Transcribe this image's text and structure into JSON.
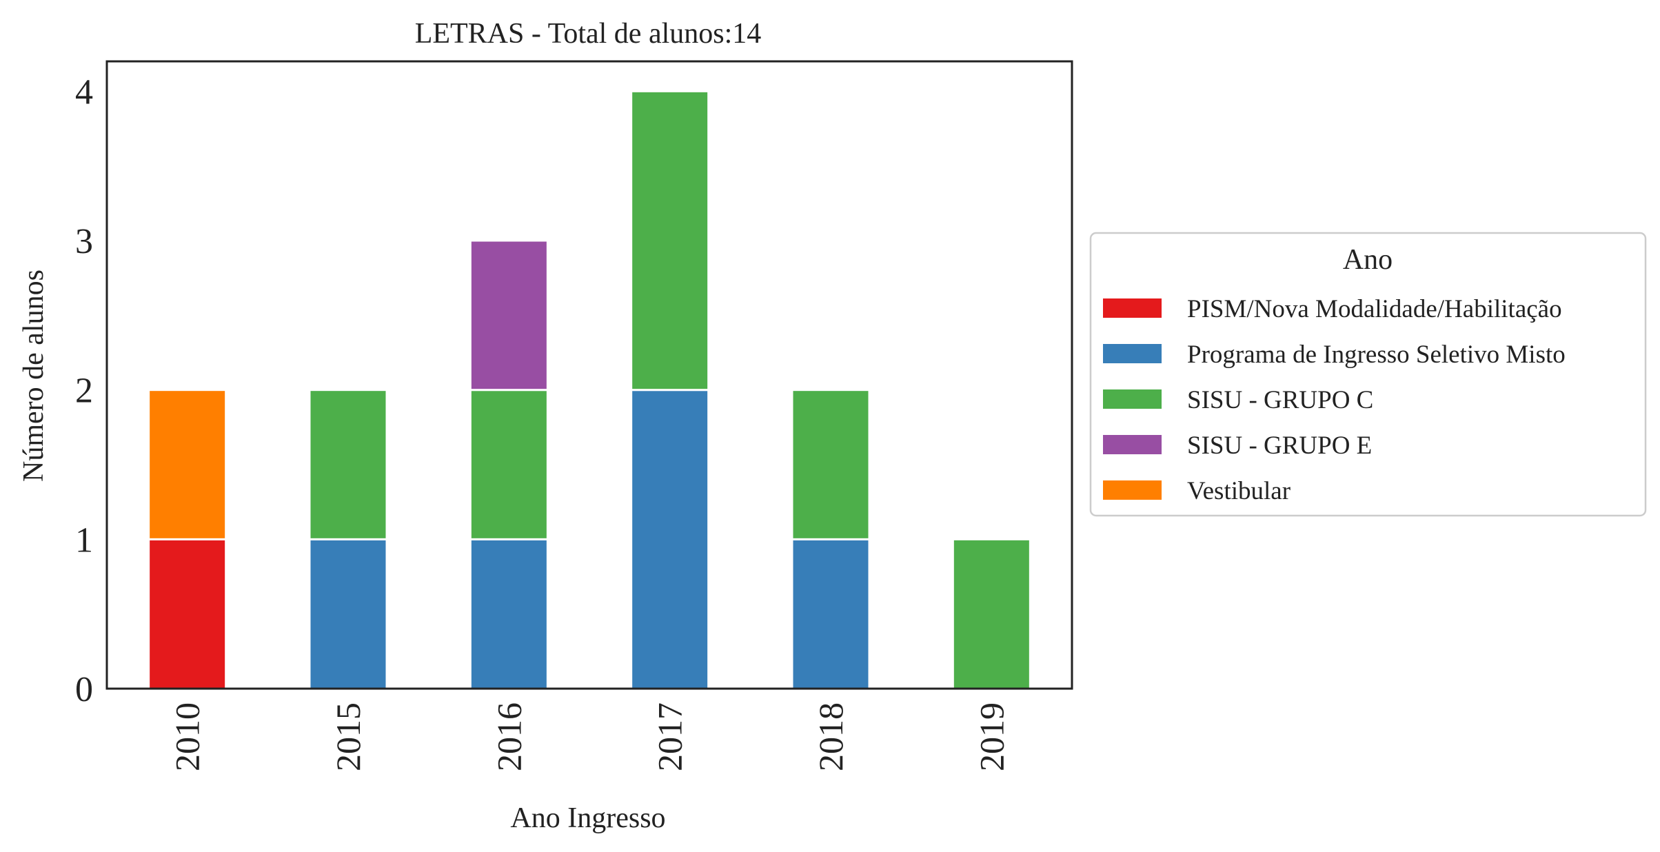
{
  "chart_data": {
    "type": "bar",
    "stacked": true,
    "title": "LETRAS - Total de alunos:14",
    "xlabel": "Ano Ingresso",
    "ylabel": "Número de alunos",
    "categories": [
      "2010",
      "2015",
      "2016",
      "2017",
      "2018",
      "2019"
    ],
    "ylim": [
      0,
      4.2
    ],
    "yticks": [
      "0",
      "1",
      "2",
      "3",
      "4"
    ],
    "legend_title": "Ano",
    "legend_position": "right",
    "grid": false,
    "series": [
      {
        "name": "PISM/Nova Modalidade/Habilitação",
        "color": "#e41a1c",
        "values": [
          1,
          0,
          0,
          0,
          0,
          0
        ]
      },
      {
        "name": "Programa de Ingresso Seletivo Misto",
        "color": "#377eb8",
        "values": [
          0,
          1,
          1,
          2,
          1,
          0
        ]
      },
      {
        "name": "SISU - GRUPO C",
        "color": "#4daf4a",
        "values": [
          0,
          1,
          1,
          2,
          1,
          1
        ]
      },
      {
        "name": "SISU - GRUPO E",
        "color": "#984ea3",
        "values": [
          0,
          0,
          1,
          0,
          0,
          0
        ]
      },
      {
        "name": "Vestibular",
        "color": "#ff7f00",
        "values": [
          1,
          0,
          0,
          0,
          0,
          0
        ]
      }
    ]
  }
}
